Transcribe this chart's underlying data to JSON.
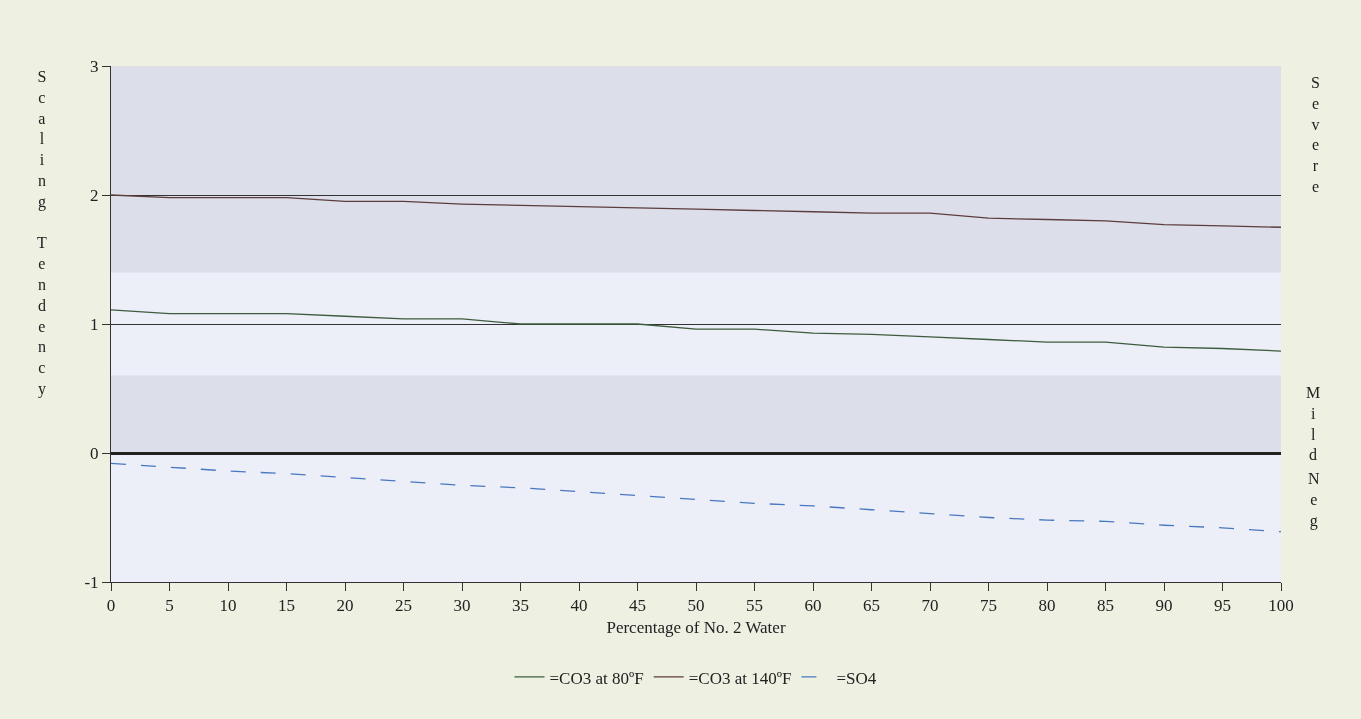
{
  "chart_data": {
    "type": "line",
    "xlabel": "Percentage of No. 2 Water",
    "ylabel": "Scaling Tendency",
    "x": [
      0,
      5,
      10,
      15,
      20,
      25,
      30,
      35,
      40,
      45,
      50,
      55,
      60,
      65,
      70,
      75,
      80,
      85,
      90,
      95,
      100
    ],
    "series": [
      {
        "name": "=CO3 at 80ºF",
        "color": "#3d5c3d",
        "line_style": "solid",
        "values": [
          1.11,
          1.08,
          1.08,
          1.08,
          1.06,
          1.04,
          1.04,
          1.0,
          1.0,
          1.0,
          0.96,
          0.96,
          0.93,
          0.92,
          0.9,
          0.88,
          0.86,
          0.86,
          0.82,
          0.81,
          0.79
        ]
      },
      {
        "name": "=CO3 at 140ºF",
        "color": "#5c3d3d",
        "line_style": "solid",
        "values": [
          2.0,
          1.98,
          1.98,
          1.98,
          1.95,
          1.95,
          1.93,
          1.92,
          1.91,
          1.9,
          1.89,
          1.88,
          1.87,
          1.86,
          1.86,
          1.82,
          1.81,
          1.8,
          1.77,
          1.76,
          1.75
        ]
      },
      {
        "name": "=SO4",
        "color": "#4a78c0",
        "line_style": "dashed",
        "values": [
          -0.08,
          -0.11,
          -0.14,
          -0.16,
          -0.19,
          -0.22,
          -0.25,
          -0.27,
          -0.3,
          -0.33,
          -0.36,
          -0.39,
          -0.41,
          -0.44,
          -0.47,
          -0.5,
          -0.52,
          -0.53,
          -0.56,
          -0.58,
          -0.61
        ]
      }
    ],
    "xlim": [
      0,
      100
    ],
    "xticks": [
      0,
      5,
      10,
      15,
      20,
      25,
      30,
      35,
      40,
      45,
      50,
      55,
      60,
      65,
      70,
      75,
      80,
      85,
      90,
      95,
      100
    ],
    "ylim": [
      -1,
      3
    ],
    "yticks": [
      -1,
      0,
      1,
      2,
      3
    ],
    "bands": [
      {
        "axis": "y",
        "from": 1.4,
        "to": 3,
        "label": "Severe",
        "color": "#dcdfea"
      },
      {
        "axis": "y",
        "from": 0,
        "to": 0.6,
        "label": "Mild",
        "color": "#dcdfea"
      }
    ],
    "annotations": [
      "Neg"
    ],
    "grid": "y",
    "legend": "bottom",
    "marker": "none"
  }
}
